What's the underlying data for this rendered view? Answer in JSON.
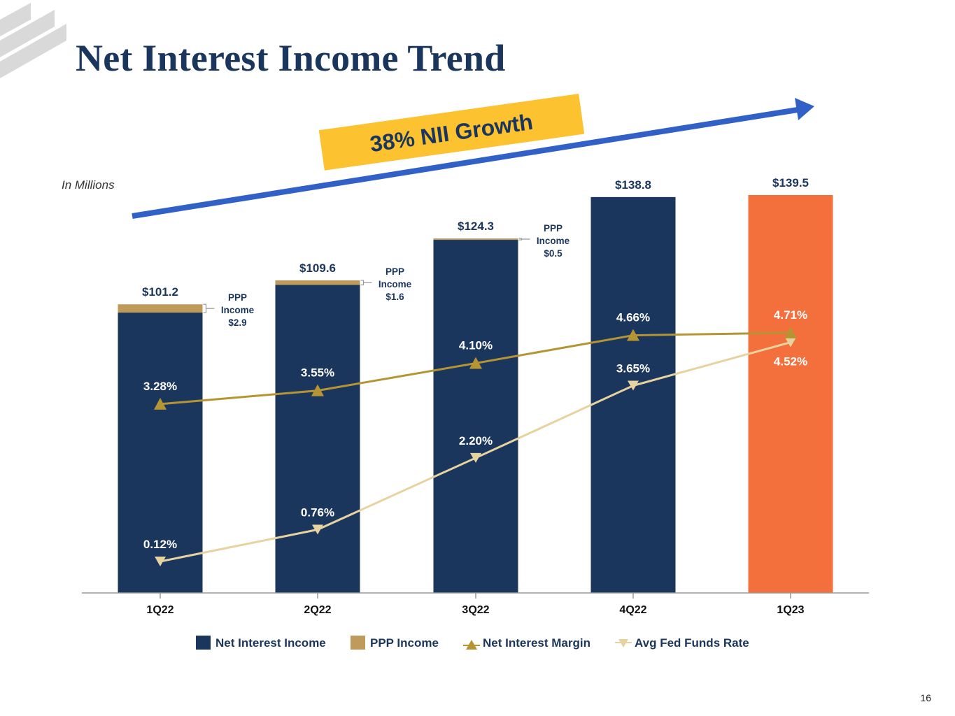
{
  "page": {
    "title": "Net Interest Income Trend",
    "unit_label": "In Millions",
    "page_number": "16"
  },
  "colors": {
    "navy": "#1b365d",
    "gold": "#c09a5b",
    "orange": "#f36f3c",
    "nim_line": "#b59533",
    "fed_line": "#e7d3a0",
    "banner": "#fcc22f",
    "arrow": "#3161c7"
  },
  "banner": {
    "text": "38% NII Growth"
  },
  "chart_data": {
    "type": "bar",
    "title": "Net Interest Income Trend",
    "ylabel": "In Millions",
    "categories": [
      "1Q22",
      "2Q22",
      "3Q22",
      "4Q22",
      "1Q23"
    ],
    "series": [
      {
        "name": "Net Interest Income",
        "values": [
          98.3,
          108.0,
          123.8,
          138.8,
          139.5
        ]
      },
      {
        "name": "PPP Income",
        "values": [
          2.9,
          1.6,
          0.5,
          0,
          0
        ]
      }
    ],
    "totals": [
      101.2,
      109.6,
      124.3,
      138.8,
      139.5
    ],
    "total_labels": [
      "$101.2",
      "$109.6",
      "$124.3",
      "$138.8",
      "$139.5"
    ],
    "ppp_annotations": [
      {
        "category": "1Q22",
        "line1": "PPP",
        "line2": "Income",
        "line3": "$2.9"
      },
      {
        "category": "2Q22",
        "line1": "PPP",
        "line2": "Income",
        "line3": "$1.6"
      },
      {
        "category": "3Q22",
        "line1": "PPP",
        "line2": "Income",
        "line3": "$0.5"
      }
    ],
    "lines": [
      {
        "name": "Net Interest Margin",
        "values": [
          3.28,
          3.55,
          4.1,
          4.66,
          4.71
        ],
        "labels": [
          "3.28%",
          "3.55%",
          "4.10%",
          "4.66%",
          "4.71%"
        ]
      },
      {
        "name": "Avg Fed Funds Rate",
        "values": [
          0.12,
          0.76,
          2.2,
          3.65,
          4.52
        ],
        "labels": [
          "0.12%",
          "0.76%",
          "2.20%",
          "3.65%",
          "4.52%"
        ]
      }
    ],
    "highlight_category": "1Q23",
    "ylim": [
      0,
      140
    ],
    "line_ylim": [
      0,
      5
    ],
    "legend": [
      "Net Interest Income",
      "PPP Income",
      "Net Interest Margin",
      "Avg Fed Funds Rate"
    ],
    "legend_position": "bottom"
  }
}
